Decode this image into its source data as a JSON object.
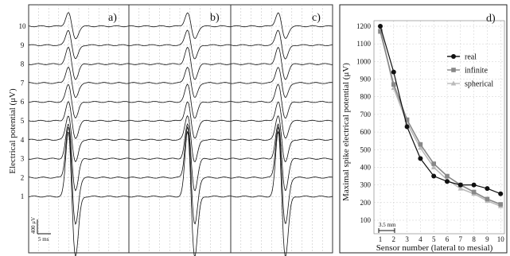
{
  "chart_data": [
    {
      "type": "line",
      "panel_labels": [
        "a)",
        "b)",
        "c)"
      ],
      "ylabel": "Electrical potential (μV)",
      "channel_labels": [
        "1",
        "2",
        "3",
        "4",
        "5",
        "6",
        "7",
        "8",
        "9",
        "10"
      ],
      "scale_bar": {
        "amplitude_label": "400 μV",
        "time_label": "5 ms"
      },
      "spike_amplitudes": [
        1200,
        940,
        630,
        450,
        350,
        320,
        300,
        300,
        280,
        250
      ]
    },
    {
      "type": "line",
      "panel_label": "d)",
      "xlabel": "Sensor number (lateral to mesial)",
      "ylabel": "Maximal spike electrical potential (μV)",
      "categories": [
        1,
        2,
        3,
        4,
        5,
        6,
        7,
        8,
        9,
        10
      ],
      "ylim": [
        100,
        1200
      ],
      "yticks": [
        100,
        200,
        300,
        400,
        500,
        600,
        700,
        800,
        900,
        1000,
        1100,
        1200
      ],
      "grid": true,
      "legend_position": "right",
      "annotation": "3.5 mm",
      "series": [
        {
          "name": "real",
          "values": [
            1200,
            940,
            630,
            450,
            350,
            320,
            300,
            300,
            280,
            250
          ]
        },
        {
          "name": "infinite",
          "values": [
            1170,
            870,
            670,
            530,
            420,
            350,
            300,
            260,
            220,
            190
          ]
        },
        {
          "name": "spherical",
          "values": [
            1190,
            850,
            650,
            510,
            400,
            330,
            280,
            250,
            210,
            180
          ]
        }
      ],
      "colors": {
        "real": "#111111",
        "infinite": "#888888",
        "spherical": "#bbbbbb"
      }
    }
  ]
}
